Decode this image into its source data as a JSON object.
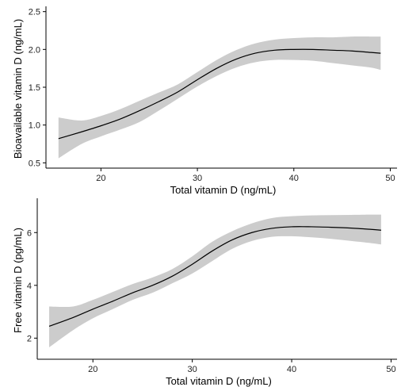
{
  "colors": {
    "band": "#cccccc",
    "line": "#000000",
    "axis": "#000000",
    "background": "#ffffff"
  },
  "chart_data": [
    {
      "type": "line",
      "xlabel": "Total vitamin D (ng/mL)",
      "ylabel": "Bioavailable vitamin D (ng/mL)",
      "xlim": [
        14.3,
        50.7
      ],
      "ylim": [
        0.43,
        2.57
      ],
      "xticks": [
        20,
        30,
        40,
        50
      ],
      "yticks": [
        0.5,
        1.0,
        1.5,
        2.0,
        2.5
      ],
      "x_tick_labels": [
        "20",
        "30",
        "40",
        "50"
      ],
      "y_tick_labels": [
        "0.5",
        "1.0",
        "1.5",
        "2.0",
        "2.5"
      ],
      "grid": false,
      "legend": "none",
      "series": [
        {
          "x": [
            15.6,
            18,
            20,
            22,
            24,
            26,
            28,
            30,
            32,
            34,
            36,
            38,
            40,
            42,
            44,
            46,
            48,
            49
          ],
          "y": [
            0.82,
            0.91,
            0.99,
            1.08,
            1.19,
            1.31,
            1.44,
            1.6,
            1.75,
            1.87,
            1.95,
            1.99,
            2.0,
            2.0,
            1.99,
            1.98,
            1.96,
            1.95
          ],
          "lower": [
            0.56,
            0.75,
            0.85,
            0.94,
            1.04,
            1.19,
            1.35,
            1.51,
            1.65,
            1.76,
            1.83,
            1.86,
            1.86,
            1.85,
            1.82,
            1.79,
            1.76,
            1.73
          ],
          "upper": [
            1.1,
            1.06,
            1.12,
            1.21,
            1.32,
            1.43,
            1.54,
            1.7,
            1.86,
            1.99,
            2.08,
            2.13,
            2.15,
            2.16,
            2.16,
            2.17,
            2.17,
            2.17
          ]
        }
      ]
    },
    {
      "type": "line",
      "xlabel": "Total vitamin D (ng/mL)",
      "ylabel": "Free vitamin D (pg/mL)",
      "xlim": [
        14.4,
        50.6
      ],
      "ylim": [
        1.2,
        7.3
      ],
      "xticks": [
        20,
        30,
        40,
        50
      ],
      "yticks": [
        2,
        4,
        6
      ],
      "x_tick_labels": [
        "20",
        "30",
        "40",
        "50"
      ],
      "y_tick_labels": [
        "2",
        "4",
        "6"
      ],
      "grid": false,
      "legend": "none",
      "series": [
        {
          "x": [
            15.6,
            18,
            20,
            22,
            24,
            26,
            28,
            30,
            32,
            34,
            36,
            38,
            40,
            42,
            44,
            46,
            48,
            49
          ],
          "y": [
            2.45,
            2.78,
            3.1,
            3.4,
            3.72,
            4.0,
            4.35,
            4.8,
            5.3,
            5.72,
            6.0,
            6.16,
            6.22,
            6.22,
            6.2,
            6.17,
            6.12,
            6.09
          ],
          "lower": [
            1.65,
            2.3,
            2.75,
            3.1,
            3.45,
            3.72,
            4.08,
            4.45,
            4.92,
            5.38,
            5.68,
            5.84,
            5.86,
            5.82,
            5.76,
            5.68,
            5.6,
            5.55
          ],
          "upper": [
            3.2,
            3.2,
            3.45,
            3.75,
            4.05,
            4.3,
            4.62,
            5.1,
            5.65,
            6.05,
            6.35,
            6.55,
            6.62,
            6.65,
            6.66,
            6.67,
            6.68,
            6.68
          ]
        }
      ]
    }
  ]
}
